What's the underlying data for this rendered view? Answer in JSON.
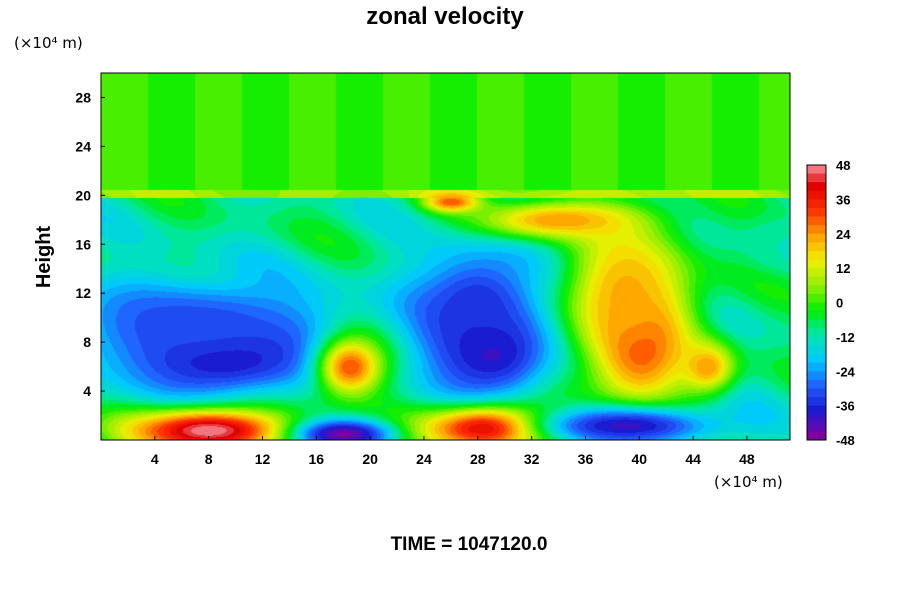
{
  "chart_data": {
    "type": "heatmap",
    "title": "zonal velocity",
    "ylabel": "Height",
    "x_unit": "(×10⁴ m)",
    "y_unit": "(×10⁴ m)",
    "x_ticks": [
      4,
      8,
      12,
      16,
      20,
      24,
      28,
      32,
      36,
      40,
      44,
      48
    ],
    "y_ticks": [
      4,
      8,
      12,
      16,
      20,
      24,
      28
    ],
    "xlim": [
      0,
      51.2
    ],
    "ylim": [
      0,
      30
    ],
    "colorbar": {
      "ticks": [
        48,
        36,
        24,
        12,
        0,
        -12,
        -24,
        -36,
        -48
      ],
      "range": [
        -48,
        48
      ]
    },
    "features": [
      {
        "x": 9,
        "y": 7,
        "value": -46,
        "rx": 7,
        "ry": 3.2
      },
      {
        "x": 7,
        "y": 9.5,
        "value": -32,
        "rx": 10,
        "ry": 4
      },
      {
        "x": 29,
        "y": 7.5,
        "value": -44,
        "rx": 4.5,
        "ry": 4
      },
      {
        "x": 28,
        "y": 11,
        "value": -36,
        "rx": 5,
        "ry": 5
      },
      {
        "x": 18.5,
        "y": 6,
        "value": 30,
        "rx": 2.5,
        "ry": 2.5
      },
      {
        "x": 40,
        "y": 8,
        "value": 36,
        "rx": 3.5,
        "ry": 5
      },
      {
        "x": 39,
        "y": 12,
        "value": 22,
        "rx": 4.5,
        "ry": 6
      },
      {
        "x": 34,
        "y": 18,
        "value": 24,
        "rx": 6,
        "ry": 1.5
      },
      {
        "x": 26,
        "y": 19.5,
        "value": 30,
        "rx": 2,
        "ry": 0.8
      },
      {
        "x": 8,
        "y": 0.8,
        "value": 48,
        "rx": 6,
        "ry": 1.8
      },
      {
        "x": 29,
        "y": 1,
        "value": 48,
        "rx": 5,
        "ry": 1.8
      },
      {
        "x": 18,
        "y": 0.5,
        "value": -46,
        "rx": 3.5,
        "ry": 1.2
      },
      {
        "x": 39,
        "y": 1.2,
        "value": -40,
        "rx": 7,
        "ry": 1.6
      },
      {
        "x": 45,
        "y": 6,
        "value": 24,
        "rx": 2,
        "ry": 2
      },
      {
        "x": 50,
        "y": 16,
        "value": -12,
        "rx": 2,
        "ry": 2
      }
    ],
    "upper_band_value": 0,
    "background_value": -10
  },
  "footer": "TIME = 1047120.0",
  "colors": {
    "colormap": [
      "#7f00a0",
      "#1a1ad0",
      "#2060ff",
      "#00c8ff",
      "#00e6b0",
      "#00ee00",
      "#90f000",
      "#f0f000",
      "#ffa000",
      "#ff3000",
      "#e00000",
      "#ffb0c0"
    ]
  }
}
